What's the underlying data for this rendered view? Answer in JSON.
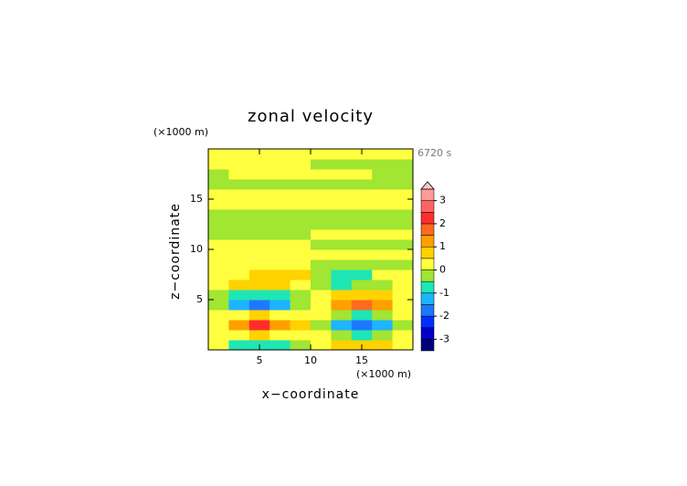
{
  "chart_data": {
    "type": "contour",
    "title": "zonal velocity",
    "x_label": "x−coordinate",
    "y_label": "z−coordinate",
    "x_unit": "(×1000 m)",
    "y_unit": "(×1000 m)",
    "time_label": "6720 s",
    "xlim": [
      0,
      20
    ],
    "ylim": [
      0,
      20
    ],
    "xticks": [
      5,
      10,
      15
    ],
    "yticks": [
      5,
      10,
      15
    ],
    "x": [
      1,
      3,
      5,
      7,
      9,
      11,
      13,
      15,
      17,
      19
    ],
    "y": [
      0.5,
      1.5,
      2.5,
      3.5,
      4.5,
      5.5,
      6.5,
      7.5,
      8.5,
      9.5,
      10.5,
      11.5,
      12.5,
      13.5,
      14.5,
      15.5,
      16.5,
      17.5,
      18.5,
      19.5
    ],
    "values": [
      [
        0.2,
        -0.7,
        -0.7,
        -0.7,
        -0.3,
        0.2,
        0.7,
        0.7,
        0.7,
        0.3
      ],
      [
        0.2,
        0.3,
        0.6,
        0.3,
        0.2,
        0.2,
        -0.3,
        -0.6,
        -0.3,
        0.2
      ],
      [
        0.3,
        1.2,
        2.1,
        1.3,
        0.6,
        -0.3,
        -1.2,
        -1.8,
        -1.2,
        -0.3
      ],
      [
        0.2,
        0.4,
        0.6,
        0.4,
        0.2,
        0.2,
        -0.3,
        -0.6,
        -0.3,
        0.2
      ],
      [
        -0.3,
        -1.2,
        -1.7,
        -1.2,
        -0.4,
        0.4,
        1.2,
        1.6,
        1.2,
        0.3
      ],
      [
        -0.2,
        -0.6,
        -0.7,
        -0.6,
        -0.2,
        0.2,
        0.6,
        0.7,
        0.6,
        0.2
      ],
      [
        0.3,
        0.6,
        0.7,
        0.6,
        0.3,
        -0.3,
        -0.6,
        -0.4,
        -0.2,
        0.2
      ],
      [
        0.3,
        0.3,
        0.6,
        0.7,
        0.6,
        -0.2,
        -0.7,
        -0.6,
        0.2,
        0.3
      ],
      [
        0.3,
        0.3,
        0.3,
        0.3,
        0.3,
        -0.2,
        -0.2,
        -0.2,
        -0.2,
        -0.2
      ],
      [
        0.3,
        0.3,
        0.3,
        0.3,
        0.3,
        0.2,
        0.2,
        0.2,
        0.2,
        0.2
      ],
      [
        0.3,
        0.3,
        0.3,
        0.3,
        0.3,
        -0.2,
        -0.2,
        -0.2,
        -0.2,
        -0.2
      ],
      [
        -0.2,
        -0.2,
        -0.2,
        -0.2,
        -0.2,
        0.3,
        0.3,
        0.3,
        0.3,
        0.3
      ],
      [
        -0.2,
        -0.2,
        -0.2,
        -0.2,
        -0.2,
        -0.2,
        -0.2,
        -0.2,
        -0.2,
        -0.2
      ],
      [
        -0.2,
        -0.2,
        -0.2,
        -0.2,
        -0.2,
        -0.2,
        -0.2,
        -0.2,
        -0.2,
        -0.2
      ],
      [
        0.3,
        0.3,
        0.3,
        0.3,
        0.3,
        0.3,
        0.3,
        0.3,
        0.3,
        0.3
      ],
      [
        0.3,
        0.3,
        0.3,
        0.3,
        0.3,
        0.3,
        0.3,
        0.3,
        0.3,
        0.3
      ],
      [
        -0.2,
        -0.2,
        -0.2,
        -0.2,
        -0.2,
        -0.2,
        -0.2,
        -0.2,
        -0.2,
        -0.2
      ],
      [
        -0.2,
        0.3,
        0.3,
        0.3,
        0.3,
        0.3,
        0.3,
        0.3,
        -0.2,
        -0.2
      ],
      [
        0.3,
        0.3,
        0.3,
        0.3,
        0.3,
        -0.2,
        -0.2,
        -0.2,
        -0.2,
        -0.2
      ],
      [
        0.3,
        0.3,
        0.3,
        0.3,
        0.3,
        0.3,
        0.3,
        0.3,
        0.3,
        0.3
      ]
    ],
    "levels": [
      -3.5,
      -3,
      -2.5,
      -2,
      -1.5,
      -1,
      -0.5,
      0,
      0.5,
      1,
      1.5,
      2,
      2.5,
      3,
      3.5
    ],
    "colors": [
      "#00007a",
      "#0000c8",
      "#0030ff",
      "#1e78ff",
      "#1eb4ff",
      "#1ee6b4",
      "#a0e632",
      "#ffff40",
      "#ffd200",
      "#ffa000",
      "#ff6a1e",
      "#ff2d2d",
      "#ff6464",
      "#ff9a9a"
    ],
    "extend_color": "#ffc8c8",
    "colorbar_ticks": [
      -3,
      -2,
      -1,
      0,
      1,
      2,
      3
    ]
  }
}
